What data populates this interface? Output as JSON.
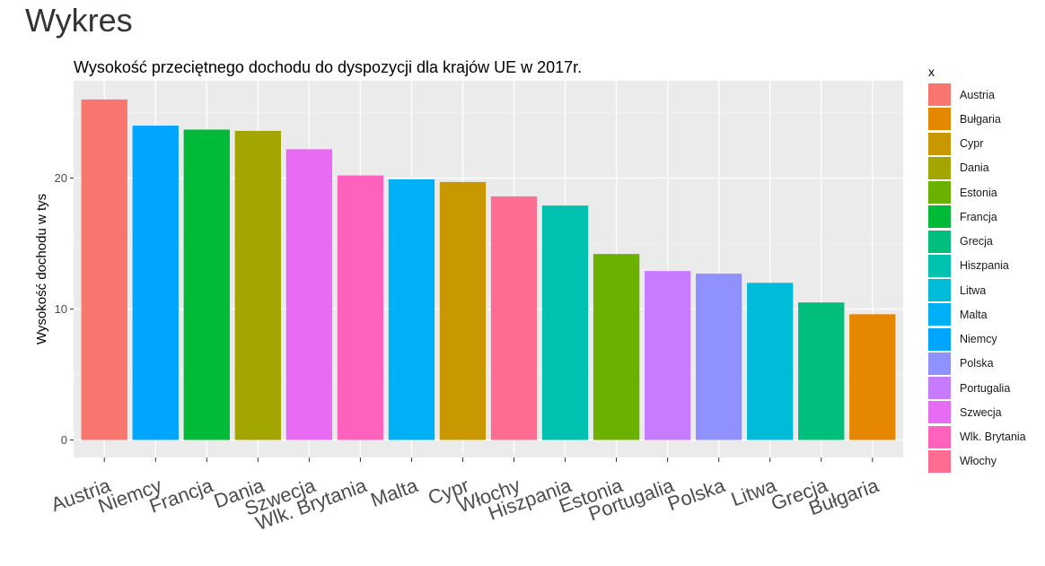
{
  "page": {
    "heading": "Wykres"
  },
  "chart_data": {
    "type": "bar",
    "title": "Wysokość przeciętnego dochodu do dyspozycji dla krajów UE w 2017r.",
    "xlabel": "",
    "ylabel": "Wysokość dochodu w tys",
    "ylim": [
      0,
      27
    ],
    "yticks": [
      0,
      10,
      20
    ],
    "grid": true,
    "legend_position": "right",
    "legend_title": "x",
    "categories": [
      "Austria",
      "Niemcy",
      "Francja",
      "Dania",
      "Szwecja",
      "Wlk. Brytania",
      "Malta",
      "Cypr",
      "Włochy",
      "Hiszpania",
      "Estonia",
      "Portugalia",
      "Polska",
      "Litwa",
      "Grecja",
      "Bułgaria"
    ],
    "values": [
      26.0,
      24.0,
      23.7,
      23.6,
      22.2,
      20.2,
      19.9,
      19.7,
      18.6,
      17.9,
      14.2,
      12.9,
      12.7,
      12.0,
      10.5,
      9.6
    ],
    "colors": {
      "Austria": "#F8766D",
      "Bułgaria": "#E58700",
      "Cypr": "#C99800",
      "Dania": "#A3A500",
      "Estonia": "#6BB100",
      "Francja": "#00BA38",
      "Grecja": "#00BF7D",
      "Hiszpania": "#00C0AF",
      "Litwa": "#00BCD8",
      "Malta": "#00B0F6",
      "Niemcy": "#00A5FF",
      "Polska": "#8F91FF",
      "Portugalia": "#C77CFF",
      "Szwecja": "#E76BF3",
      "Wlk. Brytania": "#FF62BC",
      "Włochy": "#FF6C91"
    },
    "legend": [
      "Austria",
      "Bułgaria",
      "Cypr",
      "Dania",
      "Estonia",
      "Francja",
      "Grecja",
      "Hiszpania",
      "Litwa",
      "Malta",
      "Niemcy",
      "Polska",
      "Portugalia",
      "Szwecja",
      "Wlk. Brytania",
      "Włochy"
    ]
  }
}
